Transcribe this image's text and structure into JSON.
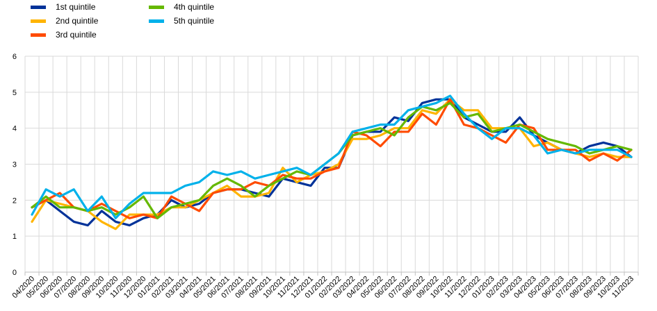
{
  "chart_data": {
    "type": "line",
    "title": "",
    "xlabel": "",
    "ylabel": "",
    "ylim": [
      0,
      6
    ],
    "yticks": [
      "0",
      "1",
      "2",
      "3",
      "4",
      "5",
      "6"
    ],
    "grid": true,
    "legend_position": "top-left",
    "categories": [
      "04/2020",
      "05/2020",
      "06/2020",
      "07/2020",
      "08/2020",
      "09/2020",
      "10/2020",
      "11/2020",
      "12/2020",
      "01/2021",
      "02/2021",
      "03/2021",
      "04/2021",
      "05/2021",
      "06/2021",
      "07/2021",
      "08/2021",
      "09/2021",
      "10/2021",
      "11/2021",
      "12/2021",
      "01/2022",
      "02/2022",
      "03/2022",
      "04/2022",
      "05/2022",
      "06/2022",
      "07/2022",
      "08/2022",
      "09/2022",
      "10/2022",
      "11/2022",
      "12/2022",
      "01/2023",
      "02/2023",
      "03/2023",
      "04/2023",
      "05/2023",
      "06/2023",
      "07/2023",
      "08/2023",
      "09/2023",
      "10/2023",
      "11/2023"
    ],
    "labeled_categories": [
      "04/2020",
      "05/2020",
      "06/2020",
      "07/2020",
      "08/2020",
      "09/2020",
      "10/2020",
      "11/2020",
      "12/2020",
      "01/2021",
      "02/2021",
      "03/2021",
      "04/2021",
      "05/2021",
      "06/2021",
      "07/2021",
      "08/2021",
      "09/2021",
      "10/2021",
      "11/2021",
      "12/2021",
      "01/2022",
      "02/2022",
      "03/2022",
      "04/2022",
      "05/2022",
      "06/2022",
      "07/2022",
      "08/2022",
      "09/2022",
      "10/2022",
      "11/2022",
      "12/2022",
      "01/2023",
      "02/2023",
      "03/2023",
      "04/2023",
      "05/2023",
      "06/2023",
      "07/2023",
      "08/2023",
      "09/2023",
      "10/2023",
      "11/2023"
    ],
    "series": [
      {
        "name": "1st quintile",
        "color": "#003299",
        "values": [
          1.8,
          2.0,
          1.7,
          1.4,
          1.3,
          1.7,
          1.4,
          1.3,
          1.5,
          1.6,
          2.0,
          1.8,
          1.9,
          2.2,
          2.3,
          2.3,
          2.2,
          2.1,
          2.6,
          2.5,
          2.4,
          2.9,
          2.9,
          3.8,
          3.9,
          3.9,
          4.3,
          4.2,
          4.7,
          4.8,
          4.8,
          4.3,
          4.1,
          3.9,
          3.9,
          4.3,
          3.8,
          3.6,
          3.4,
          3.3,
          3.5,
          3.6,
          3.5,
          3.2
        ]
      },
      {
        "name": "2nd quintile",
        "color": "#FFB400",
        "values": [
          1.4,
          2.0,
          1.9,
          1.8,
          1.7,
          1.4,
          1.2,
          1.6,
          1.6,
          1.6,
          1.8,
          1.8,
          2.0,
          2.2,
          2.4,
          2.1,
          2.1,
          2.2,
          2.9,
          2.5,
          2.7,
          2.8,
          3.0,
          3.7,
          3.7,
          3.8,
          4.0,
          4.0,
          4.5,
          4.4,
          4.8,
          4.5,
          4.5,
          4.0,
          4.0,
          4.0,
          3.5,
          3.6,
          3.4,
          3.3,
          3.2,
          3.3,
          3.2,
          3.2
        ]
      },
      {
        "name": "3rd quintile",
        "color": "#FF4B00",
        "values": [
          1.8,
          2.0,
          2.2,
          1.8,
          1.7,
          1.9,
          1.7,
          1.5,
          1.6,
          1.5,
          2.1,
          1.9,
          1.7,
          2.2,
          2.3,
          2.3,
          2.5,
          2.4,
          2.7,
          2.6,
          2.6,
          2.8,
          2.9,
          3.9,
          3.8,
          3.5,
          3.9,
          3.9,
          4.4,
          4.1,
          4.8,
          4.1,
          4.0,
          3.8,
          3.6,
          4.1,
          4.0,
          3.4,
          3.4,
          3.4,
          3.1,
          3.3,
          3.1,
          3.4
        ]
      },
      {
        "name": "4th quintile",
        "color": "#65B800",
        "values": [
          1.8,
          2.1,
          1.8,
          1.8,
          1.7,
          1.8,
          1.6,
          1.8,
          2.1,
          1.5,
          1.8,
          1.9,
          2.0,
          2.4,
          2.6,
          2.4,
          2.1,
          2.4,
          2.6,
          2.8,
          2.7,
          3.0,
          3.3,
          3.8,
          3.9,
          4.0,
          3.8,
          4.3,
          4.6,
          4.5,
          4.7,
          4.3,
          4.4,
          3.9,
          4.0,
          4.1,
          3.9,
          3.7,
          3.6,
          3.5,
          3.3,
          3.4,
          3.5,
          3.4
        ]
      },
      {
        "name": "5th quintile",
        "color": "#00B1EA",
        "values": [
          1.6,
          2.3,
          2.1,
          2.3,
          1.7,
          2.1,
          1.5,
          1.9,
          2.2,
          2.2,
          2.2,
          2.4,
          2.5,
          2.8,
          2.7,
          2.8,
          2.6,
          2.7,
          2.8,
          2.9,
          2.7,
          3.0,
          3.3,
          3.9,
          4.0,
          4.1,
          4.1,
          4.5,
          4.6,
          4.7,
          4.9,
          4.4,
          4.0,
          3.7,
          4.0,
          4.0,
          3.8,
          3.3,
          3.4,
          3.3,
          3.4,
          3.4,
          3.4,
          3.2
        ]
      }
    ]
  }
}
